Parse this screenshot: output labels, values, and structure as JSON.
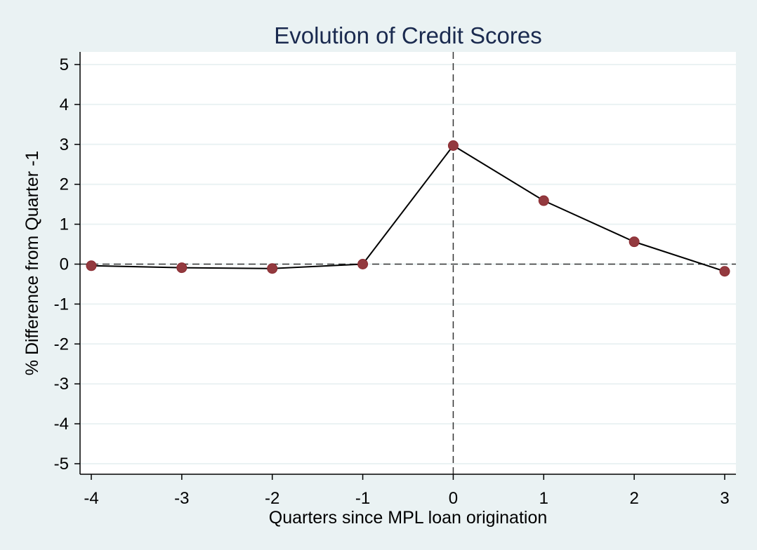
{
  "chart_data": {
    "type": "line",
    "title": "Evolution of Credit Scores",
    "xlabel": "Quarters since MPL loan origination",
    "ylabel": "% Difference from Quarter -1",
    "x": [
      -4,
      -3,
      -2,
      -1,
      0,
      1,
      2,
      3
    ],
    "series": [
      {
        "values": [
          -0.04,
          -0.09,
          -0.11,
          0.0,
          2.97,
          1.59,
          0.56,
          -0.18
        ]
      }
    ],
    "xlim": [
      -4,
      3
    ],
    "ylim": [
      -5,
      5
    ],
    "xticks": [
      -4,
      -3,
      -2,
      -1,
      0,
      1,
      2,
      3
    ],
    "yticks": [
      -5,
      -4,
      -3,
      -2,
      -1,
      0,
      1,
      2,
      3,
      4,
      5
    ],
    "reference_lines": {
      "horizontal": 0,
      "vertical": 0,
      "style": "dashed"
    },
    "grid": true,
    "legend": "none",
    "colors": {
      "background": "#eaf2f3",
      "plot_background": "#ffffff",
      "line": "#000000",
      "marker": "#933a3f",
      "title": "#1a2a4f"
    }
  }
}
